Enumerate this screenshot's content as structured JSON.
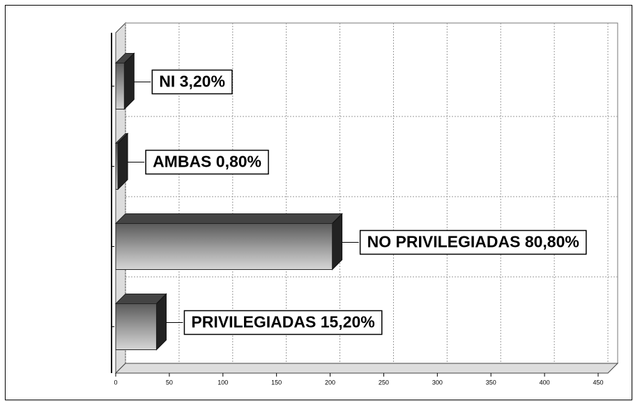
{
  "chart_data": {
    "type": "bar",
    "orientation": "horizontal",
    "categories": [
      "NI 3,20%",
      "AMBAS 0,80%",
      "NO PRIVILEGIADAS 80,80%",
      "PRIVILEGIADAS 15,20%"
    ],
    "values": [
      8,
      2,
      202,
      38
    ],
    "color": "#808080",
    "xlim": [
      0,
      450
    ],
    "xticks": [
      0,
      50,
      100,
      150,
      200,
      250,
      300,
      350,
      400,
      450
    ],
    "grid": true
  }
}
